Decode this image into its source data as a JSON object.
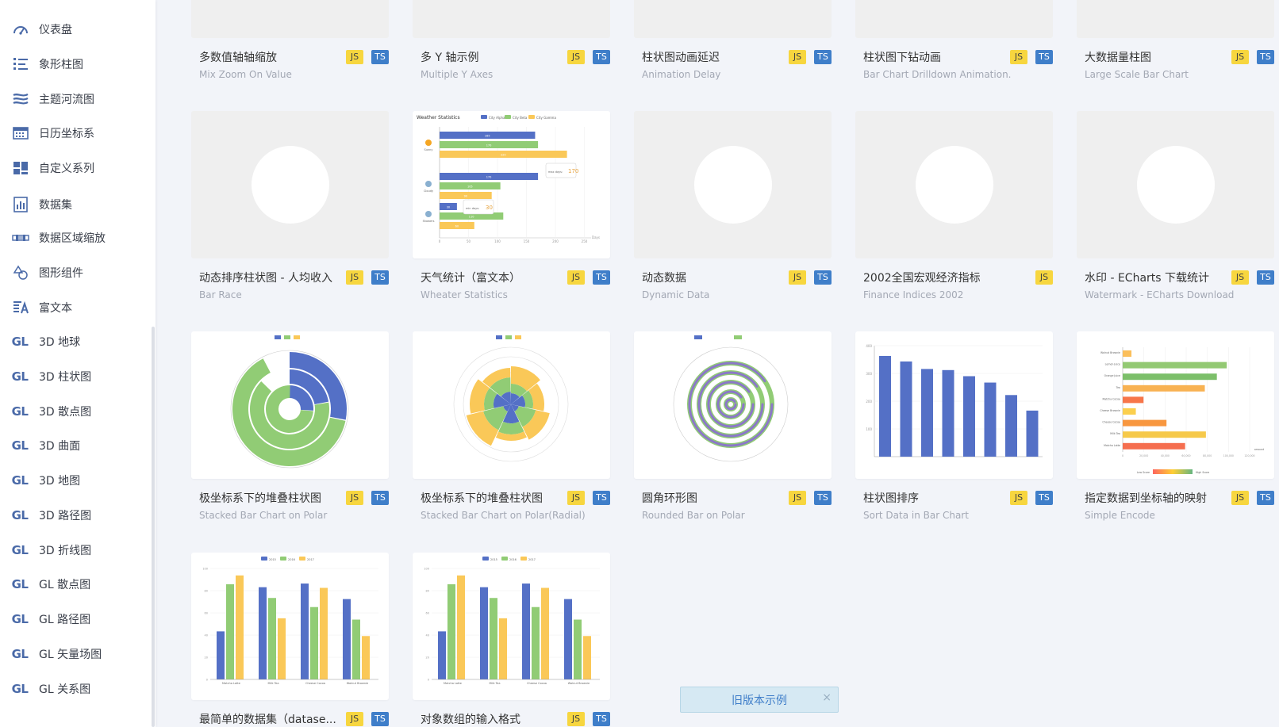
{
  "sidebar": {
    "items": [
      {
        "label": "仪表盘",
        "icon": "gauge-icon"
      },
      {
        "label": "象形柱图",
        "icon": "pictorial-bar-icon"
      },
      {
        "label": "主题河流图",
        "icon": "theme-river-icon"
      },
      {
        "label": "日历坐标系",
        "icon": "calendar-icon"
      },
      {
        "label": "自定义系列",
        "icon": "custom-series-icon"
      },
      {
        "label": "数据集",
        "icon": "dataset-icon"
      },
      {
        "label": "数据区域缩放",
        "icon": "datazoom-icon"
      },
      {
        "label": "图形组件",
        "icon": "graphic-icon"
      },
      {
        "label": "富文本",
        "icon": "rich-text-icon"
      },
      {
        "label": "3D 地球",
        "icon": "gl-icon",
        "prefix": "GL"
      },
      {
        "label": "3D 柱状图",
        "icon": "gl-icon",
        "prefix": "GL"
      },
      {
        "label": "3D 散点图",
        "icon": "gl-icon",
        "prefix": "GL"
      },
      {
        "label": "3D 曲面",
        "icon": "gl-icon",
        "prefix": "GL"
      },
      {
        "label": "3D 地图",
        "icon": "gl-icon",
        "prefix": "GL"
      },
      {
        "label": "3D 路径图",
        "icon": "gl-icon",
        "prefix": "GL"
      },
      {
        "label": "3D 折线图",
        "icon": "gl-icon",
        "prefix": "GL"
      },
      {
        "label": "GL 散点图",
        "icon": "gl-icon",
        "prefix": "GL"
      },
      {
        "label": "GL 路径图",
        "icon": "gl-icon",
        "prefix": "GL"
      },
      {
        "label": "GL 矢量场图",
        "icon": "gl-icon",
        "prefix": "GL"
      },
      {
        "label": "GL 关系图",
        "icon": "gl-icon",
        "prefix": "GL"
      }
    ]
  },
  "badges": {
    "js": "JS",
    "ts": "TS"
  },
  "cards": [
    {
      "title": "多数值轴轴缩放",
      "subtitle": "Mix Zoom On Value",
      "js": true,
      "ts": true,
      "thumb": "blank"
    },
    {
      "title": "多 Y 轴示例",
      "subtitle": "Multiple Y Axes",
      "js": true,
      "ts": true,
      "thumb": "blank"
    },
    {
      "title": "柱状图动画延迟",
      "subtitle": "Animation Delay",
      "js": true,
      "ts": true,
      "thumb": "blank"
    },
    {
      "title": "柱状图下钻动画",
      "subtitle": "Bar Chart Drilldown Animation.",
      "js": true,
      "ts": true,
      "thumb": "blank"
    },
    {
      "title": "大数据量柱图",
      "subtitle": "Large Scale Bar Chart",
      "js": true,
      "ts": true,
      "thumb": "blank"
    },
    {
      "title": "动态排序柱状图 - 人均收入",
      "subtitle": "Bar Race",
      "js": true,
      "ts": true,
      "thumb": "placeholder"
    },
    {
      "title": "天气统计（富文本）",
      "subtitle": "Wheater Statistics",
      "js": true,
      "ts": true,
      "thumb": "weather"
    },
    {
      "title": "动态数据",
      "subtitle": "Dynamic Data",
      "js": true,
      "ts": true,
      "thumb": "placeholder"
    },
    {
      "title": "2002全国宏观经济指标",
      "subtitle": "Finance Indices 2002",
      "js": true,
      "ts": false,
      "thumb": "placeholder"
    },
    {
      "title": "水印 - ECharts 下载统计",
      "subtitle": "Watermark - ECharts Download",
      "js": true,
      "ts": true,
      "thumb": "placeholder"
    },
    {
      "title": "极坐标系下的堆叠柱状图",
      "subtitle": "Stacked Bar Chart on Polar",
      "js": true,
      "ts": true,
      "thumb": "polar1"
    },
    {
      "title": "极坐标系下的堆叠柱状图",
      "subtitle": "Stacked Bar Chart on Polar(Radial)",
      "js": true,
      "ts": true,
      "thumb": "polar2"
    },
    {
      "title": "圆角环形图",
      "subtitle": "Rounded Bar on Polar",
      "js": true,
      "ts": true,
      "thumb": "rounded"
    },
    {
      "title": "柱状图排序",
      "subtitle": "Sort Data in Bar Chart",
      "js": true,
      "ts": true,
      "thumb": "sort"
    },
    {
      "title": "指定数据到坐标轴的映射",
      "subtitle": "Simple Encode",
      "js": true,
      "ts": true,
      "thumb": "encode"
    },
    {
      "title": "最简单的数据集（datase...",
      "subtitle": "",
      "js": true,
      "ts": true,
      "thumb": "dataset"
    },
    {
      "title": "对象数组的输入格式",
      "subtitle": "",
      "js": true,
      "ts": true,
      "thumb": "dataset"
    }
  ],
  "thumbnails": {
    "weather": {
      "title": "Weather Statistics",
      "legend": [
        "City Alpha",
        "City Beta",
        "City Gamma"
      ],
      "rows": [
        {
          "name": "Sunny",
          "values": [
            165,
            170,
            220
          ]
        },
        {
          "name": "Cloudy",
          "values": [
            170,
            105,
            90
          ]
        },
        {
          "name": "Showers",
          "values": [
            30,
            110,
            60
          ]
        }
      ],
      "callouts": [
        {
          "text": "max days:",
          "value": "170"
        },
        {
          "text": "min days:",
          "value": "30"
        }
      ],
      "x_ticks": [
        "0",
        "50",
        "100",
        "150",
        "200",
        "250"
      ],
      "x_unit": "Days"
    },
    "sort": {
      "values": [
        363,
        343,
        316,
        312,
        290,
        267,
        222,
        166
      ],
      "y_ticks": [
        "100",
        "200",
        "300",
        "400"
      ],
      "ymax": 400
    },
    "encode": {
      "rows": [
        {
          "name": "Walnut Brownie",
          "value": 8
        },
        {
          "name": "Lemon Juice",
          "value": 95
        },
        {
          "name": "Orange Juice",
          "value": 86
        },
        {
          "name": "Tea",
          "value": 75
        },
        {
          "name": "Matcha Cocoa",
          "value": 19
        },
        {
          "name": "Cheese Brownie",
          "value": 12
        },
        {
          "name": "Cheese Cocoa",
          "value": 40
        },
        {
          "name": "Milk Tea",
          "value": 76
        },
        {
          "name": "Matcha Latte",
          "value": 57
        }
      ],
      "x_ticks": [
        "0",
        "20,000",
        "40,000",
        "60,000",
        "80,000",
        "100,000",
        "120,000"
      ],
      "visual_map": {
        "low": "Low Score",
        "high": "High Score"
      },
      "x_name": "amount"
    },
    "dataset": {
      "legend": [
        "2015",
        "2016",
        "2017"
      ],
      "categories": [
        "Matcha Latte",
        "Milk Tea",
        "Cheese Cocoa",
        "Walnut Brownie"
      ],
      "series": [
        [
          43.3,
          83.1,
          86.4,
          72.4
        ],
        [
          85.8,
          73.4,
          65.2,
          53.9
        ],
        [
          93.7,
          55.1,
          82.5,
          39.1
        ]
      ],
      "y_ticks": [
        "0",
        "20",
        "40",
        "60",
        "80",
        "100"
      ]
    }
  },
  "toast": {
    "text": "旧版本示例",
    "close": "×"
  },
  "colors": {
    "blue": "#5470c6",
    "green": "#91cc75",
    "yellow": "#fac858",
    "accent": "#3f7ec9"
  }
}
